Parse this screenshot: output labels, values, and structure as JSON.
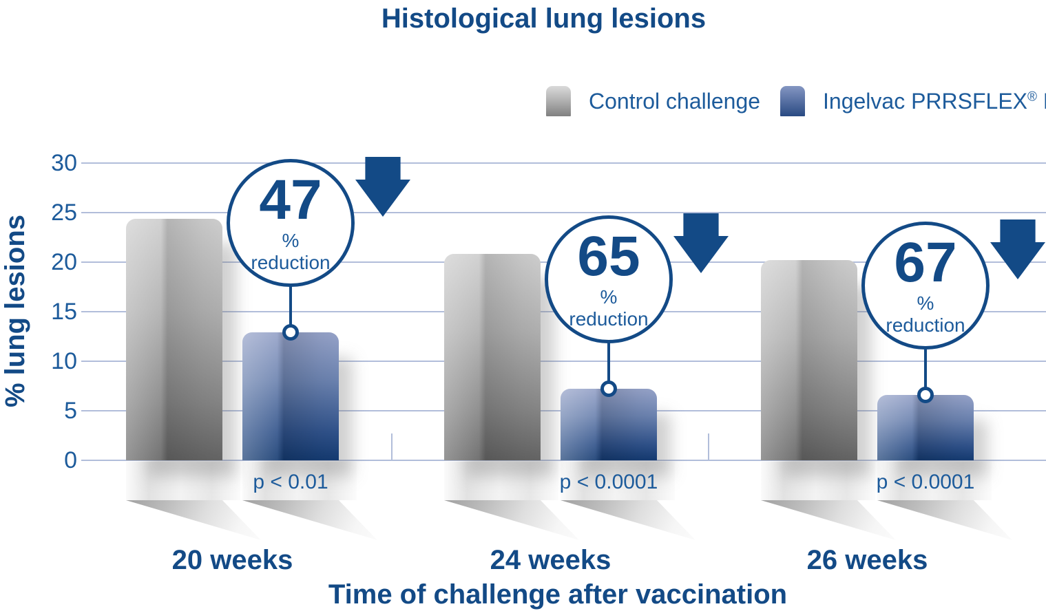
{
  "title": "Histological lung lesions",
  "legend": {
    "control": {
      "label": "Control challenge"
    },
    "vaccine": {
      "brand": "Ingelvac PRRSFLEX",
      "reg": "®",
      "suffix": " EU"
    }
  },
  "chart_data": {
    "type": "bar",
    "title": "Histological lung lesions",
    "xlabel": "Time of challenge after vaccination",
    "ylabel": "% lung lesions",
    "ylim": [
      0,
      30
    ],
    "yticks": [
      0,
      5,
      10,
      15,
      20,
      25,
      30
    ],
    "grid": true,
    "legend_position": "top-right",
    "categories": [
      "20 weeks",
      "24 weeks",
      "26 weeks"
    ],
    "series": [
      {
        "name": "Control challenge",
        "values": [
          24.4,
          20.8,
          20.2
        ]
      },
      {
        "name": "Ingelvac PRRSFLEX® EU",
        "values": [
          12.9,
          7.2,
          6.6
        ]
      }
    ],
    "annotations": [
      {
        "category": "20 weeks",
        "reduction_value": "47",
        "reduction_unit": "%",
        "reduction_word": "reduction",
        "p_value": "p < 0.01"
      },
      {
        "category": "24 weeks",
        "reduction_value": "65",
        "reduction_unit": "%",
        "reduction_word": "reduction",
        "p_value": "p < 0.0001"
      },
      {
        "category": "26 weeks",
        "reduction_value": "67",
        "reduction_unit": "%",
        "reduction_word": "reduction",
        "p_value": "p < 0.0001"
      }
    ],
    "colors": {
      "navy": "#134a86",
      "medium_blue": "#1d5b9b",
      "gridline": "#b1bdda",
      "control_bar_top": "#cdcdcd",
      "control_bar_bottom": "#636363",
      "vaccine_bar_top": "#95a2c8",
      "vaccine_bar_bottom": "#143a70"
    }
  }
}
